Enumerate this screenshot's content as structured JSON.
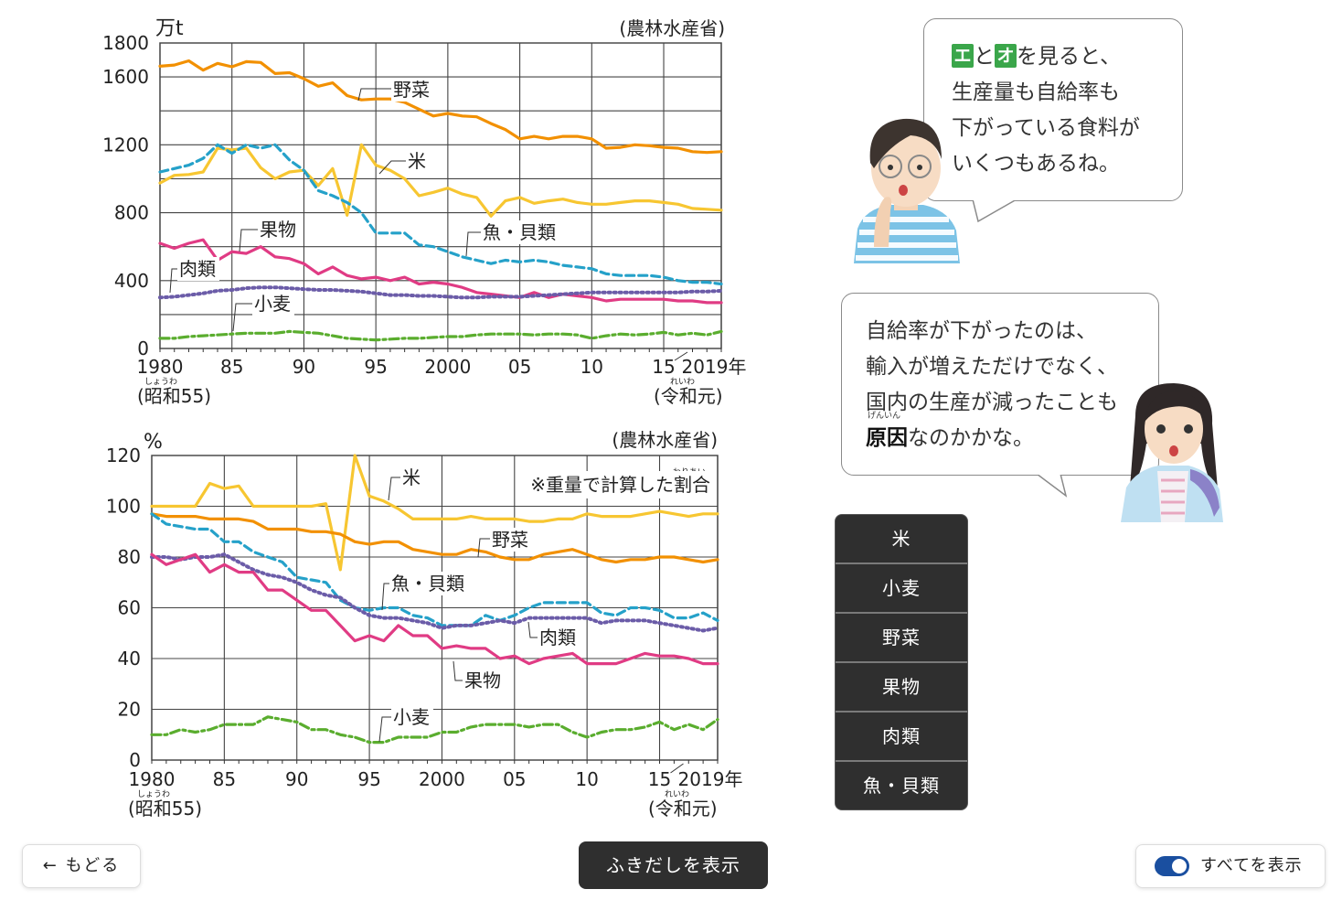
{
  "chart_data": [
    {
      "type": "line",
      "ylabel": "万t",
      "source": "(農林水産省)",
      "ylim": [
        0,
        1800
      ],
      "yticks": [
        0,
        400,
        800,
        1200,
        1600,
        1800
      ],
      "xlim": [
        1980,
        2019
      ],
      "xticks": [
        {
          "value": 1980,
          "label": "1980"
        },
        {
          "value": 1985,
          "label": "85"
        },
        {
          "value": 1990,
          "label": "90"
        },
        {
          "value": 1995,
          "label": "95"
        },
        {
          "value": 2000,
          "label": "2000"
        },
        {
          "value": 2005,
          "label": "05"
        },
        {
          "value": 2010,
          "label": "10"
        },
        {
          "value": 2015,
          "label": "15"
        },
        {
          "value": 2019,
          "label": "2019年"
        }
      ],
      "x_start_sub": "(昭和55)",
      "x_start_ruby": "しょうわ",
      "x_end_sub": "(令和元)",
      "x_end_ruby": "れいわ",
      "grid": true,
      "series": [
        {
          "name": "野菜",
          "color": "#f29000",
          "style": "solid",
          "values": [
            1663,
            1670,
            1695,
            1640,
            1680,
            1660,
            1690,
            1685,
            1620,
            1625,
            1590,
            1545,
            1565,
            1490,
            1465,
            1470,
            1470,
            1450,
            1410,
            1370,
            1385,
            1370,
            1365,
            1325,
            1290,
            1235,
            1250,
            1235,
            1250,
            1250,
            1235,
            1180,
            1185,
            1200,
            1195,
            1185,
            1180,
            1160,
            1155,
            1160
          ]
        },
        {
          "name": "米",
          "color": "#f7c631",
          "style": "solid",
          "values": [
            975,
            1020,
            1025,
            1040,
            1180,
            1170,
            1180,
            1065,
            1000,
            1040,
            1050,
            960,
            1060,
            785,
            1200,
            1080,
            1050,
            1000,
            900,
            920,
            945,
            910,
            890,
            780,
            870,
            890,
            855,
            870,
            880,
            860,
            850,
            850,
            860,
            870,
            870,
            860,
            850,
            825,
            820,
            815
          ]
        },
        {
          "name": "魚・貝類",
          "color": "#25a1c9",
          "style": "dashed",
          "values": [
            1040,
            1060,
            1080,
            1120,
            1200,
            1150,
            1200,
            1180,
            1200,
            1110,
            1050,
            930,
            900,
            860,
            800,
            680,
            680,
            680,
            610,
            600,
            570,
            540,
            520,
            500,
            520,
            510,
            520,
            510,
            490,
            480,
            470,
            440,
            430,
            430,
            430,
            420,
            400,
            390,
            390,
            380
          ]
        },
        {
          "name": "果物",
          "color": "#e03b84",
          "style": "solid",
          "values": [
            620,
            590,
            620,
            640,
            520,
            570,
            560,
            600,
            540,
            530,
            500,
            440,
            480,
            430,
            410,
            420,
            400,
            420,
            380,
            390,
            380,
            360,
            330,
            320,
            310,
            300,
            330,
            300,
            320,
            310,
            300,
            280,
            290,
            290,
            290,
            290,
            280,
            280,
            270,
            270
          ]
        },
        {
          "name": "肉類",
          "color": "#6b5ca8",
          "style": "dotted",
          "values": [
            300,
            305,
            315,
            325,
            340,
            345,
            355,
            360,
            360,
            355,
            350,
            345,
            345,
            340,
            335,
            325,
            315,
            315,
            310,
            310,
            305,
            300,
            300,
            305,
            305,
            305,
            310,
            315,
            320,
            325,
            330,
            330,
            330,
            330,
            330,
            330,
            330,
            335,
            335,
            340
          ]
        },
        {
          "name": "小麦",
          "color": "#5aad2e",
          "style": "dashdot",
          "values": [
            60,
            60,
            70,
            75,
            80,
            85,
            90,
            90,
            90,
            100,
            95,
            90,
            75,
            60,
            55,
            50,
            55,
            60,
            60,
            65,
            70,
            70,
            80,
            85,
            85,
            85,
            80,
            85,
            85,
            80,
            60,
            75,
            85,
            80,
            85,
            95,
            80,
            90,
            80,
            100
          ]
        }
      ]
    },
    {
      "type": "line",
      "ylabel": "%",
      "source": "(農林水産省)",
      "note": "※重量で計算した割合",
      "note_ruby": "わりあい",
      "ylim": [
        0,
        120
      ],
      "yticks": [
        0,
        20,
        40,
        60,
        80,
        100,
        120
      ],
      "xlim": [
        1980,
        2019
      ],
      "xticks": [
        {
          "value": 1980,
          "label": "1980"
        },
        {
          "value": 1985,
          "label": "85"
        },
        {
          "value": 1990,
          "label": "90"
        },
        {
          "value": 1995,
          "label": "95"
        },
        {
          "value": 2000,
          "label": "2000"
        },
        {
          "value": 2005,
          "label": "05"
        },
        {
          "value": 2010,
          "label": "10"
        },
        {
          "value": 2015,
          "label": "15"
        },
        {
          "value": 2019,
          "label": "2019年"
        }
      ],
      "x_start_sub": "(昭和55)",
      "x_start_ruby": "しょうわ",
      "x_end_sub": "(令和元)",
      "x_end_ruby": "れいわ",
      "grid": true,
      "series": [
        {
          "name": "米",
          "color": "#f7c631",
          "style": "solid",
          "values": [
            100,
            100,
            100,
            100,
            109,
            107,
            108,
            100,
            100,
            100,
            100,
            100,
            101,
            75,
            120,
            104,
            102,
            99,
            95,
            95,
            95,
            95,
            96,
            95,
            95,
            95,
            94,
            94,
            95,
            95,
            97,
            96,
            96,
            96,
            97,
            98,
            97,
            96,
            97,
            97
          ]
        },
        {
          "name": "野菜",
          "color": "#f29000",
          "style": "solid",
          "values": [
            97,
            96,
            96,
            96,
            95,
            95,
            95,
            94,
            91,
            91,
            91,
            90,
            90,
            89,
            86,
            85,
            86,
            86,
            83,
            82,
            81,
            81,
            83,
            82,
            80,
            79,
            79,
            81,
            82,
            83,
            81,
            79,
            78,
            79,
            79,
            80,
            80,
            79,
            78,
            79
          ]
        },
        {
          "name": "魚・貝類",
          "color": "#25a1c9",
          "style": "dashed",
          "values": [
            97,
            93,
            92,
            91,
            91,
            86,
            86,
            82,
            80,
            78,
            72,
            71,
            70,
            63,
            60,
            59,
            60,
            60,
            57,
            56,
            53,
            53,
            53,
            57,
            55,
            57,
            60,
            62,
            62,
            62,
            62,
            58,
            57,
            60,
            60,
            59,
            56,
            56,
            58,
            55
          ]
        },
        {
          "name": "肉類",
          "color": "#6b5ca8",
          "style": "dotted",
          "values": [
            80,
            80,
            79,
            80,
            80,
            81,
            78,
            75,
            73,
            72,
            70,
            67,
            65,
            64,
            60,
            57,
            56,
            56,
            55,
            54,
            52,
            53,
            53,
            54,
            55,
            54,
            56,
            56,
            56,
            56,
            56,
            54,
            55,
            55,
            55,
            54,
            53,
            52,
            51,
            52
          ]
        },
        {
          "name": "果物",
          "color": "#e03b84",
          "style": "solid",
          "values": [
            81,
            77,
            79,
            81,
            74,
            77,
            74,
            74,
            67,
            67,
            63,
            59,
            59,
            53,
            47,
            49,
            47,
            53,
            49,
            49,
            44,
            45,
            44,
            44,
            40,
            41,
            38,
            40,
            41,
            42,
            38,
            38,
            38,
            40,
            42,
            41,
            41,
            40,
            38,
            38
          ]
        },
        {
          "name": "小麦",
          "color": "#5aad2e",
          "style": "dashdot",
          "values": [
            10,
            10,
            12,
            11,
            12,
            14,
            14,
            14,
            17,
            16,
            15,
            12,
            12,
            10,
            9,
            7,
            7,
            9,
            9,
            9,
            11,
            11,
            13,
            14,
            14,
            14,
            13,
            14,
            14,
            11,
            9,
            11,
            12,
            12,
            13,
            15,
            12,
            14,
            12,
            16
          ]
        }
      ]
    }
  ],
  "bubbles": [
    {
      "lines": [
        [
          "エ",
          "と",
          "オ",
          "を見ると、"
        ],
        [
          "生産量も自給率も"
        ],
        [
          "下がっている食料が"
        ],
        [
          "いくつもあるね。"
        ]
      ]
    },
    {
      "lines": [
        "自給率が下がったのは、",
        "輸入が増えただけでなく、",
        "国内の生産が減ったことも"
      ],
      "last_bold": "原因",
      "last_bold_ruby": "げんいん",
      "last_rest": "なのかかな。"
    }
  ],
  "filters": [
    "米",
    "小麦",
    "野菜",
    "果物",
    "肉類",
    "魚・貝類"
  ],
  "nav": {
    "back_label": "← もどる",
    "center_label": "ふきだしを表示",
    "toggle_label": "すべてを表示",
    "toggle_on": true
  }
}
